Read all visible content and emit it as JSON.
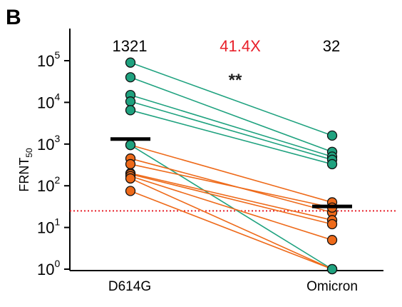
{
  "chart_data": {
    "type": "scatter",
    "panel_label": "B",
    "ylabel": {
      "base": "FRNT",
      "sub": "50"
    },
    "yscale": "log",
    "ylim": [
      1,
      100000
    ],
    "y_ticks": [
      {
        "base": "10",
        "exp": "0",
        "value": 1
      },
      {
        "base": "10",
        "exp": "1",
        "value": 10
      },
      {
        "base": "10",
        "exp": "2",
        "value": 100
      },
      {
        "base": "10",
        "exp": "3",
        "value": 1000
      },
      {
        "base": "10",
        "exp": "4",
        "value": 10000
      },
      {
        "base": "10",
        "exp": "5",
        "value": 100000
      }
    ],
    "categories": [
      "D614G",
      "Omicron"
    ],
    "group_values": [
      "1321",
      "32"
    ],
    "fold_change": "41.4X",
    "significance": "**",
    "geometric_means": [
      1321,
      32
    ],
    "detection_limit": 25,
    "colors": {
      "green": "#1fa27f",
      "orange": "#ee6a1a",
      "fold_change": "#e8202a",
      "limit_line": "#e8202a",
      "mean_bar": "#000000"
    },
    "pairs": [
      {
        "d614g": 90000,
        "omicron": 1600,
        "color": "green"
      },
      {
        "d614g": 40000,
        "omicron": 650,
        "color": "green"
      },
      {
        "d614g": 15000,
        "omicron": 500,
        "color": "green"
      },
      {
        "d614g": 10500,
        "omicron": 420,
        "color": "green"
      },
      {
        "d614g": 6500,
        "omicron": 330,
        "color": "green"
      },
      {
        "d614g": 950,
        "omicron": 1,
        "color": "green"
      },
      {
        "d614g": 950,
        "omicron": 40,
        "color": "orange"
      },
      {
        "d614g": 450,
        "omicron": 23,
        "color": "orange"
      },
      {
        "d614g": 330,
        "omicron": 30,
        "color": "orange"
      },
      {
        "d614g": 200,
        "omicron": 15,
        "color": "orange"
      },
      {
        "d614g": 190,
        "omicron": 12,
        "color": "orange"
      },
      {
        "d614g": 170,
        "omicron": 5,
        "color": "orange"
      },
      {
        "d614g": 150,
        "omicron": 1,
        "color": "orange"
      },
      {
        "d614g": 75,
        "omicron": 1,
        "color": "orange"
      }
    ]
  }
}
